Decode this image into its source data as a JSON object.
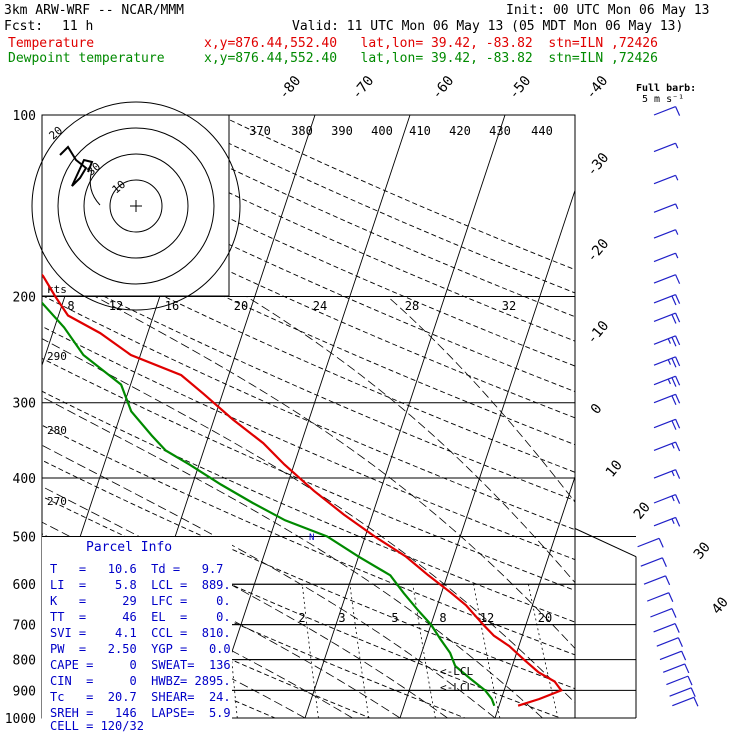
{
  "header": {
    "model": "3km ARW-WRF -- NCAR/MMM",
    "init": "Init: 00 UTC Mon 06 May 13",
    "fcst_label": "Fcst:",
    "fcst_value": "11 h",
    "valid": "Valid: 11 UTC Mon 06 May 13 (05 MDT Mon 06 May 13)",
    "temp_label": "Temperature",
    "dew_label": "Dewpoint temperature",
    "location": "x,y=876.44,552.40   lat,lon= 39.42, -83.82  stn=ILN ,72426",
    "barb_label": "Full barb:",
    "barb_units": "5 m s⁻¹",
    "temp_color": "#e00000",
    "dew_color": "#008a00",
    "wind_color": "#2020c8",
    "info_color": "#0000c8"
  },
  "chart_data": {
    "type": "skew-t log-p",
    "yscale": "log",
    "ylim": [
      1000,
      100
    ],
    "pressure_levels": [
      100,
      200,
      300,
      400,
      500,
      600,
      700,
      800,
      900,
      1000
    ],
    "isotherm_labels": [
      -80,
      -70,
      -60,
      -50,
      -40,
      -30,
      -20,
      -10,
      0,
      10,
      20,
      30,
      40
    ],
    "theta_labels": [
      370,
      380,
      390,
      400,
      410,
      420,
      430,
      440
    ],
    "theta_side_labels": [
      290,
      280,
      270
    ],
    "mixing_ratio_labels": [
      2,
      3,
      5,
      8,
      12,
      20
    ],
    "hodograph": {
      "units_label": "kts",
      "ring_labels": [
        20,
        30,
        10
      ],
      "speed_labels": [
        8,
        12,
        16,
        20,
        24,
        28,
        32
      ]
    },
    "annotations": [
      "<-LCL",
      "<-LCL"
    ],
    "series": [
      {
        "name": "Temperature",
        "points": [
          [
            954,
            12
          ],
          [
            930,
            14
          ],
          [
            900,
            16
          ],
          [
            870,
            15
          ],
          [
            840,
            13
          ],
          [
            800,
            11
          ],
          [
            760,
            9
          ],
          [
            730,
            7
          ],
          [
            700,
            5.5
          ],
          [
            650,
            3
          ],
          [
            620,
            1
          ],
          [
            580,
            -2
          ],
          [
            540,
            -5
          ],
          [
            500,
            -9
          ],
          [
            460,
            -13
          ],
          [
            420,
            -17
          ],
          [
            380,
            -21
          ],
          [
            350,
            -24
          ],
          [
            320,
            -28
          ],
          [
            290,
            -32
          ],
          [
            270,
            -35
          ],
          [
            250,
            -41
          ],
          [
            230,
            -45
          ],
          [
            215,
            -49
          ],
          [
            200,
            -51
          ],
          [
            185,
            -53
          ],
          [
            175,
            -55
          ],
          [
            165,
            -57
          ],
          [
            155,
            -58
          ],
          [
            145,
            -59
          ],
          [
            135,
            -60
          ],
          [
            125,
            -60
          ],
          [
            115,
            -62
          ],
          [
            105,
            -62
          ],
          [
            100,
            -63
          ]
        ]
      },
      {
        "name": "Dewpoint temperature",
        "points": [
          [
            954,
            9.5
          ],
          [
            930,
            9
          ],
          [
            900,
            8
          ],
          [
            860,
            6
          ],
          [
            820,
            4
          ],
          [
            780,
            3
          ],
          [
            740,
            1.5
          ],
          [
            700,
            0
          ],
          [
            660,
            -2
          ],
          [
            620,
            -4
          ],
          [
            580,
            -6
          ],
          [
            540,
            -10
          ],
          [
            500,
            -14
          ],
          [
            470,
            -19
          ],
          [
            440,
            -23
          ],
          [
            410,
            -27
          ],
          [
            380,
            -31
          ],
          [
            360,
            -34
          ],
          [
            340,
            -36
          ],
          [
            310,
            -39
          ],
          [
            280,
            -41
          ],
          [
            250,
            -46
          ],
          [
            225,
            -49
          ],
          [
            200,
            -53
          ],
          [
            185,
            -57
          ],
          [
            170,
            -61
          ],
          [
            160,
            -65
          ],
          [
            150,
            -66
          ],
          [
            140,
            -68
          ],
          [
            130,
            -70
          ],
          [
            120,
            -72
          ],
          [
            110,
            -74
          ],
          [
            100,
            -77
          ]
        ]
      }
    ],
    "wind_barbs": [
      {
        "p": 100,
        "speed_ms": 10,
        "dir": 260
      },
      {
        "p": 115,
        "speed_ms": 7,
        "dir": 255
      },
      {
        "p": 130,
        "speed_ms": 8,
        "dir": 250
      },
      {
        "p": 145,
        "speed_ms": 8,
        "dir": 250
      },
      {
        "p": 160,
        "speed_ms": 7,
        "dir": 245
      },
      {
        "p": 175,
        "speed_ms": 8,
        "dir": 255
      },
      {
        "p": 190,
        "speed_ms": 12,
        "dir": 250
      },
      {
        "p": 205,
        "speed_ms": 20,
        "dir": 250
      },
      {
        "p": 220,
        "speed_ms": 22,
        "dir": 250
      },
      {
        "p": 240,
        "speed_ms": 25,
        "dir": 250
      },
      {
        "p": 260,
        "speed_ms": 25,
        "dir": 250
      },
      {
        "p": 280,
        "speed_ms": 25,
        "dir": 250
      },
      {
        "p": 300,
        "speed_ms": 22,
        "dir": 250
      },
      {
        "p": 330,
        "speed_ms": 20,
        "dir": 250
      },
      {
        "p": 360,
        "speed_ms": 17,
        "dir": 250
      },
      {
        "p": 400,
        "speed_ms": 15,
        "dir": 250
      },
      {
        "p": 440,
        "speed_ms": 15,
        "dir": 250
      },
      {
        "p": 480,
        "speed_ms": 15,
        "dir": 250
      },
      {
        "p": 520,
        "speed_ms": 10,
        "dir": 245
      },
      {
        "p": 560,
        "speed_ms": 10,
        "dir": 245
      },
      {
        "p": 600,
        "speed_ms": 10,
        "dir": 245
      },
      {
        "p": 640,
        "speed_ms": 10,
        "dir": 245
      },
      {
        "p": 680,
        "speed_ms": 10,
        "dir": 240
      },
      {
        "p": 720,
        "speed_ms": 10,
        "dir": 240
      },
      {
        "p": 760,
        "speed_ms": 10,
        "dir": 240
      },
      {
        "p": 800,
        "speed_ms": 10,
        "dir": 230
      },
      {
        "p": 840,
        "speed_ms": 10,
        "dir": 220
      },
      {
        "p": 880,
        "speed_ms": 10,
        "dir": 220
      },
      {
        "p": 920,
        "speed_ms": 10,
        "dir": 220
      },
      {
        "p": 954,
        "speed_ms": 10,
        "dir": 215
      }
    ]
  },
  "parcel_info": {
    "title": "Parcel Info",
    "rows": [
      "T   =   10.6  Td =   9.7",
      "LI  =    5.8  LCL =  889.",
      "K   =     29  LFC =    0.",
      "TT  =     46  EL  =    0.",
      "SVI =    4.1  CCL =  810.",
      "PW  =   2.50  YGP =   0.0",
      "CAPE =     0  SWEAT=  136",
      "CIN  =     0  HWBZ= 2895.",
      "Tc   =  20.7  SHEAR=  24.",
      "SREH =   146  LAPSE=  5.9",
      "CELL = 120/32"
    ]
  }
}
